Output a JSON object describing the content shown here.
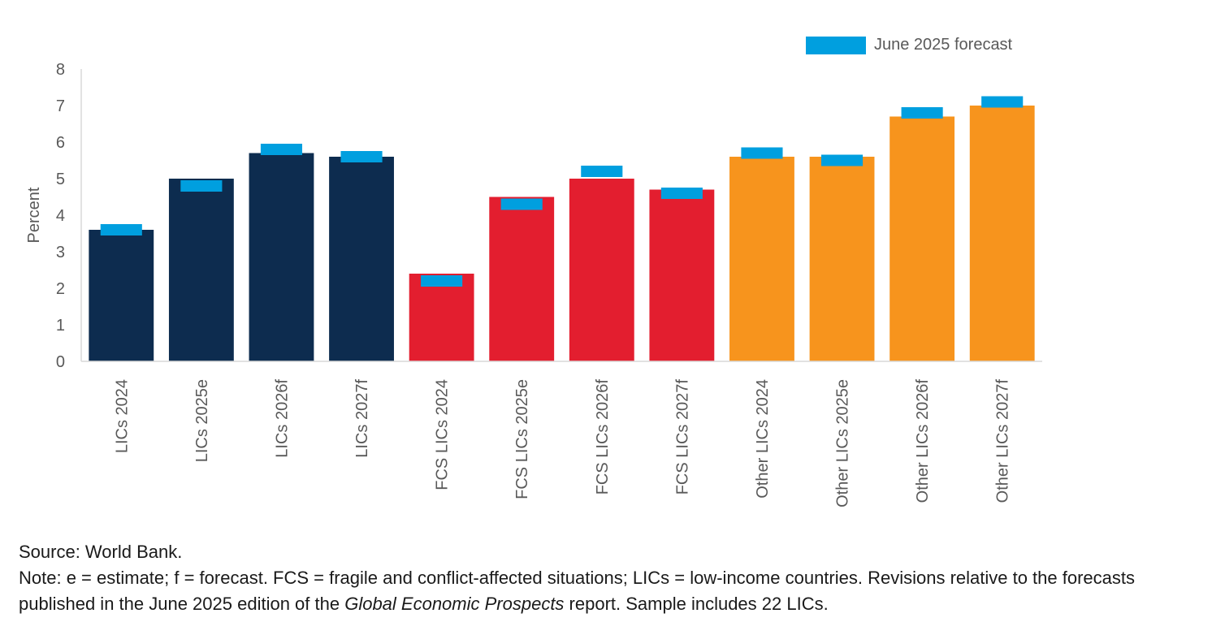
{
  "chart_data": {
    "type": "bar",
    "ylabel": "Percent",
    "ylim": [
      0,
      8
    ],
    "yticks": [
      "0",
      "1",
      "2",
      "3",
      "4",
      "5",
      "6",
      "7",
      "8"
    ],
    "categories": [
      "LICs 2024",
      "LICs 2025e",
      "LICs 2026f",
      "LICs 2027f",
      "FCS LICs 2024",
      "FCS LICs 2025e",
      "FCS LICs 2026f",
      "FCS LICs 2027f",
      "Other LICs 2024",
      "Other LICs 2025e",
      "Other LICs 2026f",
      "Other LICs 2027f"
    ],
    "values": [
      3.6,
      5.0,
      5.7,
      5.6,
      2.4,
      4.5,
      5.0,
      4.7,
      5.6,
      5.6,
      6.7,
      7.0
    ],
    "bar_colors": [
      "#0d2c4f",
      "#0d2c4f",
      "#0d2c4f",
      "#0d2c4f",
      "#e31e2f",
      "#e31e2f",
      "#e31e2f",
      "#e31e2f",
      "#f7941d",
      "#f7941d",
      "#f7941d",
      "#f7941d"
    ],
    "forecast_series": {
      "name": "June 2025 forecast",
      "color": "#009fdf",
      "values": [
        3.6,
        4.8,
        5.8,
        5.6,
        2.2,
        4.3,
        5.2,
        4.6,
        5.7,
        5.5,
        6.8,
        7.1
      ]
    },
    "legend": "top-right",
    "grid": false
  },
  "notes": {
    "source": "Source: World Bank.",
    "note_before_italic": "Note: e = estimate; f = forecast. FCS = fragile and conflict-affected situations; LICs = low-income countries. Revisions relative to the forecasts published in the June 2025 edition of the ",
    "note_italic": "Global Economic Prospects",
    "note_after_italic": " report. Sample includes 22 LICs."
  }
}
